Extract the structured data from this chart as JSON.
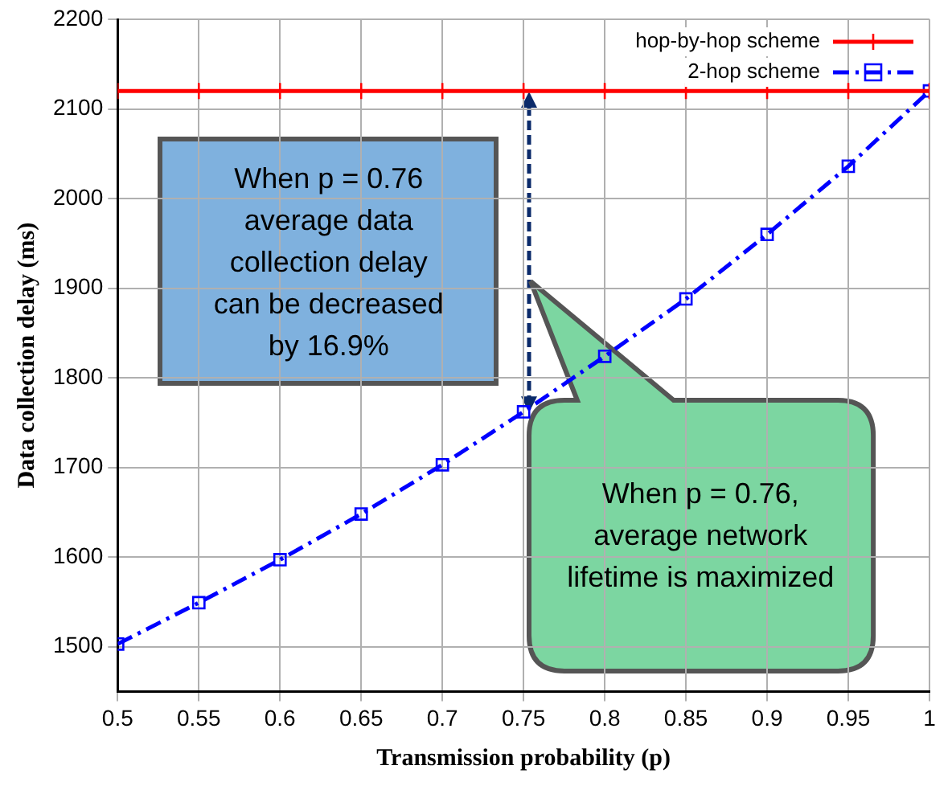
{
  "chart_data": {
    "type": "line",
    "xlabel": "Transmission probability (p)",
    "ylabel": "Data collection delay (ms)",
    "x": [
      0.5,
      0.55,
      0.6,
      0.65,
      0.7,
      0.75,
      0.8,
      0.85,
      0.9,
      0.95,
      1
    ],
    "series": [
      {
        "name": "hop-by-hop scheme",
        "color": "#ff0000",
        "marker": "cross",
        "line_style": "solid",
        "values": [
          2120,
          2120,
          2120,
          2120,
          2120,
          2120,
          2120,
          2120,
          2120,
          2120,
          2120
        ]
      },
      {
        "name": "2-hop scheme",
        "color": "#0000ff",
        "marker": "square",
        "line_style": "dashed",
        "values": [
          1503,
          1549,
          1597,
          1648,
          1703,
          1762,
          1824,
          1888,
          1960,
          2036,
          2120
        ]
      }
    ],
    "xlim": [
      0.5,
      1
    ],
    "xticks": [
      0.5,
      0.55,
      0.6,
      0.65,
      0.7,
      0.75,
      0.8,
      0.85,
      0.9,
      0.95,
      1
    ],
    "ylim": [
      1450,
      2200
    ],
    "yticks": [
      1500,
      1600,
      1700,
      1800,
      1900,
      2000,
      2100,
      2200
    ],
    "grid": true,
    "legend": "top right",
    "annotations": [
      "When p = 0.76 average data collection delay can be decreased by 16.9%",
      "When p = 0.76, average network lifetime is maximized"
    ]
  }
}
